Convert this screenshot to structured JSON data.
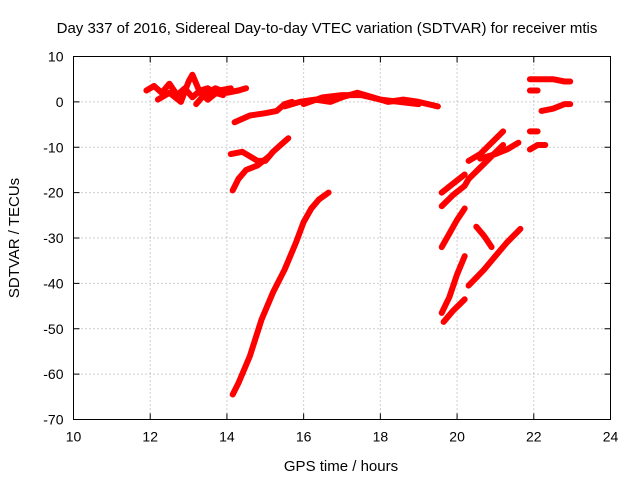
{
  "chart_data": {
    "type": "scatter",
    "title": "Day 337 of 2016, Sidereal Day-to-day VTEC variation (SDTVAR) for receiver mtis",
    "xlabel": "GPS time / hours",
    "ylabel": "SDTVAR / TECUs",
    "xlim": [
      10,
      24
    ],
    "ylim": [
      -70,
      10
    ],
    "xticks": [
      10,
      12,
      14,
      16,
      18,
      20,
      22,
      24
    ],
    "yticks": [
      10,
      0,
      -10,
      -20,
      -30,
      -40,
      -50,
      -60,
      -70
    ],
    "grid": true,
    "legend": "none",
    "color": "#ff0000",
    "series": [
      {
        "points": [
          [
            11.9,
            2.5
          ],
          [
            12.1,
            3.5
          ],
          [
            12.3,
            2.0
          ],
          [
            12.5,
            4.0
          ],
          [
            12.7,
            1.5
          ],
          [
            12.9,
            3.0
          ],
          [
            13.1,
            1.0
          ],
          [
            13.3,
            2.5
          ],
          [
            13.5,
            3.0
          ],
          [
            13.7,
            2.0
          ],
          [
            13.9,
            1.5
          ]
        ]
      },
      {
        "points": [
          [
            12.2,
            0.5
          ],
          [
            12.5,
            2.0
          ],
          [
            12.8,
            0.0
          ],
          [
            13.0,
            4.5
          ],
          [
            13.1,
            6.0
          ],
          [
            13.3,
            2.0
          ],
          [
            13.5,
            0.5
          ],
          [
            13.8,
            2.5
          ],
          [
            14.1,
            3.0
          ]
        ]
      },
      {
        "points": [
          [
            13.2,
            -0.5
          ],
          [
            13.4,
            1.5
          ],
          [
            13.7,
            3.0
          ],
          [
            14.0,
            2.0
          ],
          [
            14.3,
            2.5
          ],
          [
            14.5,
            3.0
          ]
        ]
      },
      {
        "points": [
          [
            14.1,
            -11.5
          ],
          [
            14.4,
            -11.0
          ],
          [
            14.6,
            -12.0
          ],
          [
            14.8,
            -13.0
          ],
          [
            15.0,
            -13.0
          ],
          [
            15.2,
            -11.0
          ],
          [
            15.4,
            -9.5
          ],
          [
            15.6,
            -8.0
          ]
        ]
      },
      {
        "points": [
          [
            14.15,
            -19.5
          ],
          [
            14.3,
            -17.0
          ],
          [
            14.5,
            -15.0
          ],
          [
            14.8,
            -14.0
          ],
          [
            15.1,
            -12.0
          ]
        ]
      },
      {
        "points": [
          [
            14.15,
            -64.5
          ],
          [
            14.3,
            -62.0
          ],
          [
            14.6,
            -56.0
          ],
          [
            14.9,
            -48.0
          ],
          [
            15.2,
            -42.0
          ],
          [
            15.5,
            -37.0
          ],
          [
            15.8,
            -31.0
          ],
          [
            16.0,
            -26.5
          ],
          [
            16.2,
            -23.5
          ],
          [
            16.4,
            -21.5
          ],
          [
            16.65,
            -20.0
          ]
        ]
      },
      {
        "points": [
          [
            14.2,
            -4.5
          ],
          [
            14.6,
            -3.0
          ],
          [
            15.0,
            -2.5
          ],
          [
            15.3,
            -2.0
          ],
          [
            15.5,
            -0.5
          ],
          [
            15.7,
            0.0
          ]
        ]
      },
      {
        "points": [
          [
            15.5,
            -1.0
          ],
          [
            15.9,
            0.0
          ],
          [
            16.3,
            0.5
          ],
          [
            16.7,
            0.0
          ],
          [
            17.0,
            1.0
          ],
          [
            17.4,
            2.0
          ],
          [
            17.8,
            1.0
          ],
          [
            18.2,
            0.0
          ],
          [
            18.6,
            0.5
          ],
          [
            19.0,
            0.0
          ],
          [
            19.5,
            -1.0
          ]
        ]
      },
      {
        "points": [
          [
            16.0,
            -0.5
          ],
          [
            16.5,
            1.0
          ],
          [
            17.0,
            1.5
          ],
          [
            17.5,
            1.5
          ],
          [
            18.0,
            0.5
          ],
          [
            18.5,
            0.0
          ],
          [
            19.0,
            -0.5
          ]
        ]
      },
      {
        "points": [
          [
            19.6,
            -20.0
          ],
          [
            19.9,
            -18.0
          ],
          [
            20.2,
            -16.0
          ]
        ]
      },
      {
        "points": [
          [
            19.6,
            -23.0
          ],
          [
            19.9,
            -20.5
          ],
          [
            20.2,
            -18.5
          ],
          [
            20.3,
            -17.0
          ]
        ]
      },
      {
        "points": [
          [
            19.6,
            -32.0
          ],
          [
            19.8,
            -29.0
          ],
          [
            20.0,
            -26.0
          ],
          [
            20.2,
            -23.5
          ]
        ]
      },
      {
        "points": [
          [
            19.6,
            -46.5
          ],
          [
            19.8,
            -43.0
          ],
          [
            20.0,
            -38.0
          ],
          [
            20.2,
            -34.0
          ]
        ]
      },
      {
        "points": [
          [
            19.65,
            -48.5
          ],
          [
            19.9,
            -46.0
          ],
          [
            20.2,
            -43.5
          ]
        ]
      },
      {
        "points": [
          [
            20.3,
            -13.0
          ],
          [
            20.6,
            -11.5
          ],
          [
            20.9,
            -9.0
          ],
          [
            21.2,
            -6.5
          ]
        ]
      },
      {
        "points": [
          [
            20.3,
            -17.0
          ],
          [
            20.6,
            -14.5
          ],
          [
            20.9,
            -12.0
          ],
          [
            21.2,
            -9.5
          ]
        ]
      },
      {
        "points": [
          [
            20.6,
            -12.5
          ],
          [
            21.0,
            -11.5
          ],
          [
            21.3,
            -10.5
          ],
          [
            21.6,
            -9.0
          ]
        ]
      },
      {
        "points": [
          [
            20.5,
            -27.5
          ],
          [
            20.7,
            -29.5
          ],
          [
            20.9,
            -32.0
          ]
        ]
      },
      {
        "points": [
          [
            20.3,
            -40.5
          ],
          [
            20.7,
            -37.0
          ],
          [
            21.0,
            -34.0
          ],
          [
            21.3,
            -31.0
          ],
          [
            21.65,
            -28.0
          ]
        ]
      },
      {
        "points": [
          [
            21.9,
            5.0
          ],
          [
            22.2,
            5.0
          ],
          [
            22.5,
            5.0
          ],
          [
            22.8,
            4.5
          ],
          [
            22.95,
            4.5
          ]
        ]
      },
      {
        "points": [
          [
            21.9,
            2.5
          ],
          [
            22.1,
            2.5
          ]
        ]
      },
      {
        "points": [
          [
            22.2,
            -2.0
          ],
          [
            22.5,
            -1.5
          ],
          [
            22.8,
            -0.5
          ],
          [
            22.95,
            -0.5
          ]
        ]
      },
      {
        "points": [
          [
            21.9,
            -6.5
          ],
          [
            22.1,
            -6.5
          ]
        ]
      },
      {
        "points": [
          [
            21.9,
            -10.5
          ],
          [
            22.1,
            -9.5
          ],
          [
            22.3,
            -9.5
          ]
        ]
      }
    ]
  }
}
